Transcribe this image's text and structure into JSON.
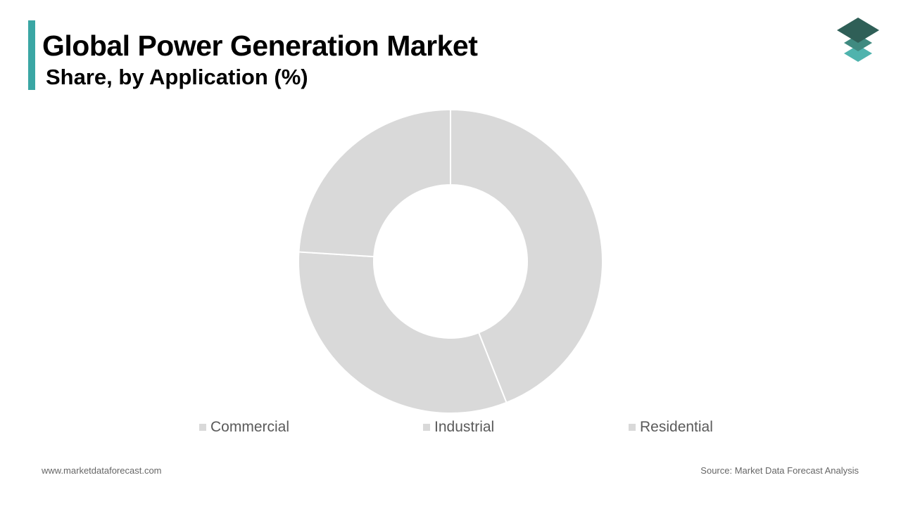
{
  "header": {
    "title": "Global Power Generation Market",
    "subtitle": "Share, by Application (%)"
  },
  "colors": {
    "accent": "#3aa6a4",
    "slice": "#d9d9d9",
    "slice_border": "#ffffff",
    "logo_top": "#2f5f57",
    "logo_mid": "#3f8a80",
    "logo_bottom": "#4fb3ad"
  },
  "logo": {
    "icon": "stacked-layers-icon"
  },
  "chart_data": {
    "type": "pie",
    "donut": true,
    "title": "Global Power Generation Market",
    "subtitle": "Share, by Application (%)",
    "categories": [
      "Commercial",
      "Industrial",
      "Residential"
    ],
    "values": [
      44,
      32,
      24
    ],
    "legend_position": "bottom"
  },
  "footer": {
    "website": "www.marketdataforecast.com",
    "source": "Source: Market Data Forecast Analysis"
  }
}
